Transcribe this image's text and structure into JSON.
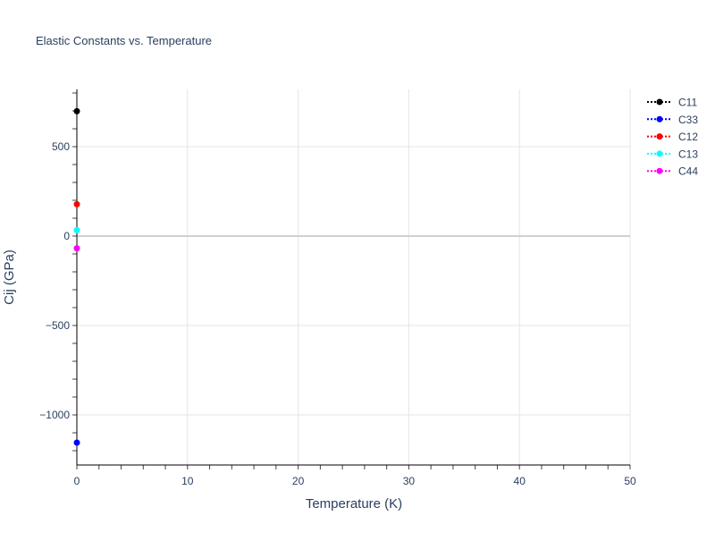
{
  "chart_data": {
    "type": "scatter",
    "mode": "lines+markers",
    "title": "Elastic Constants vs. Temperature",
    "xlabel": "Temperature (K)",
    "ylabel": "Cij (GPa)",
    "xlim": [
      0,
      50
    ],
    "ylim": [
      -1280,
      820
    ],
    "xticks": [
      0,
      10,
      20,
      30,
      40,
      50
    ],
    "yticks": [
      -1000,
      -500,
      0,
      500
    ],
    "ytick_labels": [
      "−1000",
      "−500",
      "0",
      "500"
    ],
    "grid": true,
    "legend_position": "top-right",
    "series": [
      {
        "name": "C11",
        "color": "#000000",
        "x": [
          0
        ],
        "y": [
          698
        ]
      },
      {
        "name": "C33",
        "color": "#0000ff",
        "x": [
          0
        ],
        "y": [
          -1155
        ]
      },
      {
        "name": "C12",
        "color": "#ff0000",
        "x": [
          0
        ],
        "y": [
          178
        ]
      },
      {
        "name": "C13",
        "color": "#00ffff",
        "x": [
          0
        ],
        "y": [
          33
        ]
      },
      {
        "name": "C44",
        "color": "#ff00ff",
        "x": [
          0
        ],
        "y": [
          -68
        ]
      }
    ]
  }
}
